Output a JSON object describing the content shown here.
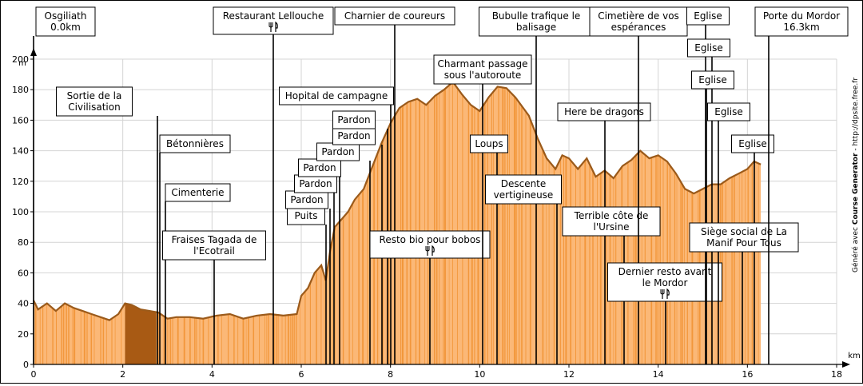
{
  "chart_data": {
    "type": "area",
    "xlabel": "km",
    "ylabel": "m",
    "xlim": [
      0,
      18
    ],
    "ylim": [
      0,
      200
    ],
    "x_ticks": [
      0,
      2,
      4,
      6,
      8,
      10,
      12,
      14,
      16,
      18
    ],
    "y_ticks": [
      0,
      20,
      40,
      60,
      80,
      100,
      120,
      140,
      160,
      180,
      200
    ],
    "grid": true,
    "fill_color": "#fbb877",
    "line_color": "#9b5a1a",
    "stripe_color": "#f08c28",
    "highlight_segment": {
      "x": [
        2.05,
        2.75
      ],
      "color": "#a85a14"
    },
    "profile": [
      [
        0,
        42
      ],
      [
        0.1,
        36
      ],
      [
        0.3,
        40
      ],
      [
        0.5,
        35
      ],
      [
        0.7,
        40
      ],
      [
        0.9,
        37
      ],
      [
        1.1,
        35
      ],
      [
        1.3,
        33
      ],
      [
        1.5,
        31
      ],
      [
        1.7,
        29
      ],
      [
        1.9,
        33
      ],
      [
        2.05,
        40
      ],
      [
        2.2,
        39
      ],
      [
        2.4,
        36
      ],
      [
        2.6,
        35
      ],
      [
        2.8,
        34
      ],
      [
        3.0,
        30
      ],
      [
        3.2,
        31
      ],
      [
        3.5,
        31
      ],
      [
        3.8,
        30
      ],
      [
        4.1,
        32
      ],
      [
        4.4,
        33
      ],
      [
        4.7,
        30
      ],
      [
        5.0,
        32
      ],
      [
        5.3,
        33
      ],
      [
        5.6,
        32
      ],
      [
        5.9,
        33
      ],
      [
        6.0,
        45
      ],
      [
        6.15,
        50
      ],
      [
        6.3,
        60
      ],
      [
        6.45,
        65
      ],
      [
        6.55,
        55
      ],
      [
        6.65,
        75
      ],
      [
        6.75,
        90
      ],
      [
        6.9,
        95
      ],
      [
        7.05,
        100
      ],
      [
        7.2,
        108
      ],
      [
        7.4,
        115
      ],
      [
        7.6,
        130
      ],
      [
        7.8,
        145
      ],
      [
        8.0,
        158
      ],
      [
        8.2,
        168
      ],
      [
        8.4,
        172
      ],
      [
        8.6,
        174
      ],
      [
        8.8,
        170
      ],
      [
        9.0,
        176
      ],
      [
        9.2,
        180
      ],
      [
        9.4,
        185
      ],
      [
        9.6,
        177
      ],
      [
        9.8,
        170
      ],
      [
        10.0,
        166
      ],
      [
        10.2,
        175
      ],
      [
        10.4,
        182
      ],
      [
        10.6,
        181
      ],
      [
        10.8,
        175
      ],
      [
        11.0,
        167
      ],
      [
        11.1,
        163
      ],
      [
        11.3,
        148
      ],
      [
        11.5,
        135
      ],
      [
        11.7,
        128
      ],
      [
        11.85,
        137
      ],
      [
        12.0,
        135
      ],
      [
        12.2,
        128
      ],
      [
        12.4,
        135
      ],
      [
        12.6,
        123
      ],
      [
        12.8,
        127
      ],
      [
        13.0,
        122
      ],
      [
        13.2,
        130
      ],
      [
        13.4,
        134
      ],
      [
        13.6,
        140
      ],
      [
        13.8,
        135
      ],
      [
        14.0,
        137
      ],
      [
        14.2,
        133
      ],
      [
        14.4,
        125
      ],
      [
        14.6,
        115
      ],
      [
        14.8,
        112
      ],
      [
        15.0,
        115
      ],
      [
        15.2,
        118
      ],
      [
        15.4,
        118
      ],
      [
        15.6,
        122
      ],
      [
        15.8,
        125
      ],
      [
        16.0,
        128
      ],
      [
        16.15,
        133
      ],
      [
        16.3,
        131
      ]
    ],
    "annotations": [
      {
        "x": 0.0,
        "text": [
          "Osgiliath",
          "0.0km"
        ],
        "restaurant": false
      },
      {
        "x": 2.8,
        "text": [
          "Sortie de la",
          "Civilisation"
        ],
        "restaurant": false
      },
      {
        "x": 2.85,
        "text": [
          "Bétonnières"
        ],
        "restaurant": false
      },
      {
        "x": 2.95,
        "text": [
          "Cimenterie"
        ],
        "restaurant": false
      },
      {
        "x": 4.05,
        "text": [
          "Fraises Tagada de",
          "l'Ecotrail"
        ],
        "restaurant": false
      },
      {
        "x": 5.3,
        "text": [
          "Restaurant Lellouche"
        ],
        "restaurant": true
      },
      {
        "x": 7.9,
        "text": [
          "Hopital de campagne"
        ],
        "restaurant": false
      },
      {
        "x": 8.05,
        "text": [
          "Charnier de coureurs"
        ],
        "restaurant": false
      },
      {
        "x": 6.5,
        "text": [
          "Puits"
        ],
        "restaurant": false
      },
      {
        "x": 6.6,
        "text": [
          "Pardon"
        ],
        "restaurant": false
      },
      {
        "x": 6.7,
        "text": [
          "Pardon"
        ],
        "restaurant": false
      },
      {
        "x": 6.8,
        "text": [
          "Pardon"
        ],
        "restaurant": false
      },
      {
        "x": 7.1,
        "text": [
          "Pardon"
        ],
        "restaurant": false
      },
      {
        "x": 7.3,
        "text": [
          "Pardon"
        ],
        "restaurant": false
      },
      {
        "x": 7.6,
        "text": [
          "Pardon"
        ],
        "restaurant": false
      },
      {
        "x": 8.9,
        "text": [
          "Resto bio pour bobos"
        ],
        "restaurant": true
      },
      {
        "x": 10.05,
        "text": [
          "Charmant passage",
          "sous l'autoroute"
        ],
        "restaurant": false
      },
      {
        "x": 10.2,
        "text": [
          "Loups"
        ],
        "restaurant": false
      },
      {
        "x": 11.05,
        "text": [
          "Bubulle trafique le",
          "balisage"
        ],
        "restaurant": false
      },
      {
        "x": 11.2,
        "text": [
          "Descente",
          "vertigineuse"
        ],
        "restaurant": false
      },
      {
        "x": 12.7,
        "text": [
          "Here be dragons"
        ],
        "restaurant": false
      },
      {
        "x": 13.1,
        "text": [
          "Terrible côte de",
          "l'Ursine"
        ],
        "restaurant": false
      },
      {
        "x": 13.45,
        "text": [
          "Cimetière de vos",
          "espérances"
        ],
        "restaurant": false
      },
      {
        "x": 14.1,
        "text": [
          "Dernier resto avant",
          "le Mordor"
        ],
        "restaurant": true
      },
      {
        "x": 14.9,
        "text": [
          "Eglise"
        ],
        "restaurant": false
      },
      {
        "x": 15.05,
        "text": [
          "Eglise"
        ],
        "restaurant": false
      },
      {
        "x": 15.15,
        "text": [
          "Eglise"
        ],
        "restaurant": false
      },
      {
        "x": 15.35,
        "text": [
          "Eglise"
        ],
        "restaurant": false
      },
      {
        "x": 15.95,
        "text": [
          "Eglise"
        ],
        "restaurant": false
      },
      {
        "x": 15.55,
        "text": [
          "Siège social de La",
          "Manif Pour Tous"
        ],
        "restaurant": false
      },
      {
        "x": 16.3,
        "text": [
          "Porte du Mordor",
          "16.3km"
        ],
        "restaurant": false
      }
    ]
  },
  "credit": {
    "prefix": "Généré avec ",
    "brand": "Course Generator",
    "suffix": " - http://dpsite.free.fr"
  },
  "icons": {
    "restaurant": "fork-knife-icon"
  }
}
